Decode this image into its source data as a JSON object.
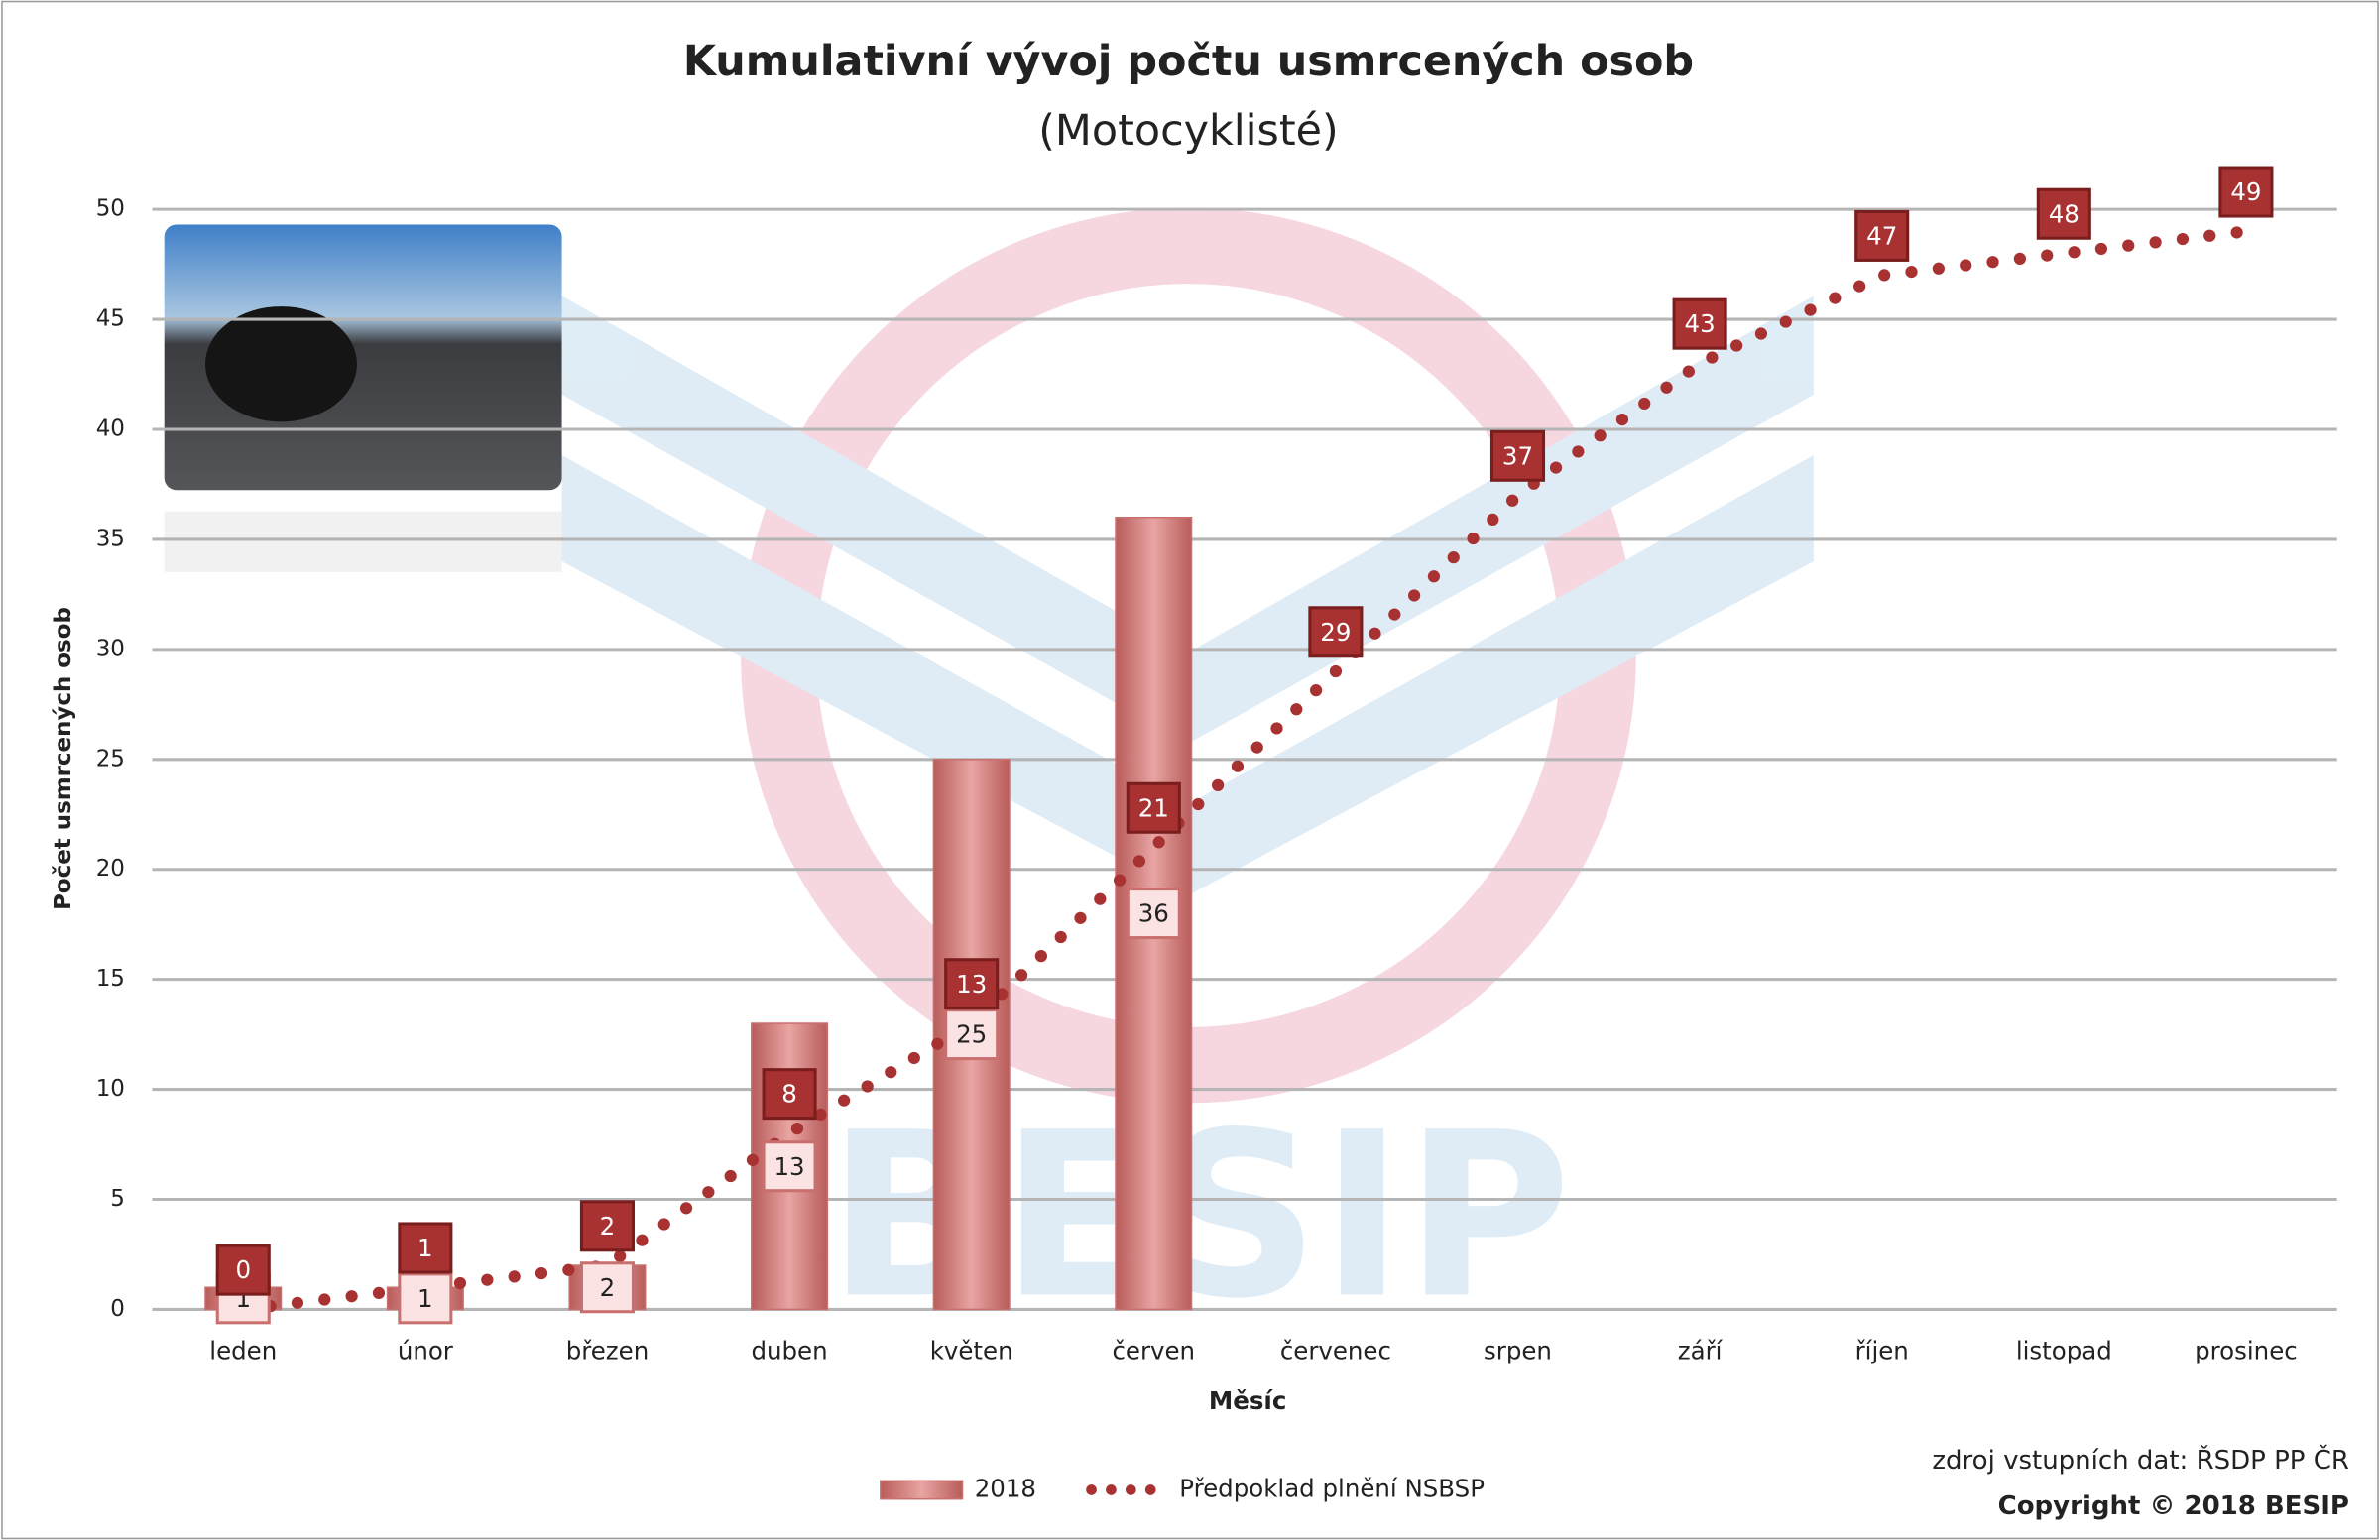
{
  "chart_data": {
    "type": "bar",
    "title": "Kumulativní vývoj počtu usmrcených osob",
    "subtitle": "(Motocyklisté)",
    "x_label": "Měsíc",
    "y_label": "Počet usmrcených osob",
    "categories": [
      "leden",
      "únor",
      "březen",
      "duben",
      "květen",
      "červen",
      "červenec",
      "srpen",
      "září",
      "říjen",
      "listopad",
      "prosinec"
    ],
    "series": [
      {
        "name": "2018",
        "type": "bar",
        "color": "#c9706e",
        "values": [
          1,
          1,
          2,
          13,
          25,
          36,
          null,
          null,
          null,
          null,
          null,
          null
        ]
      },
      {
        "name": "Předpoklad plnění NSBSP",
        "type": "line",
        "color": "#a83232",
        "values": [
          0,
          1,
          2,
          8,
          13,
          21,
          29,
          37,
          43,
          47,
          48,
          49
        ]
      }
    ],
    "ylim": [
      0,
      50
    ],
    "yticks": [
      0,
      5,
      10,
      15,
      20,
      25,
      30,
      35,
      40,
      45,
      50
    ],
    "grid": true,
    "source": "zdroj vstupních dat: ŘSDP PP ČR",
    "copyright": "Copyright © 2018 BESIP"
  }
}
